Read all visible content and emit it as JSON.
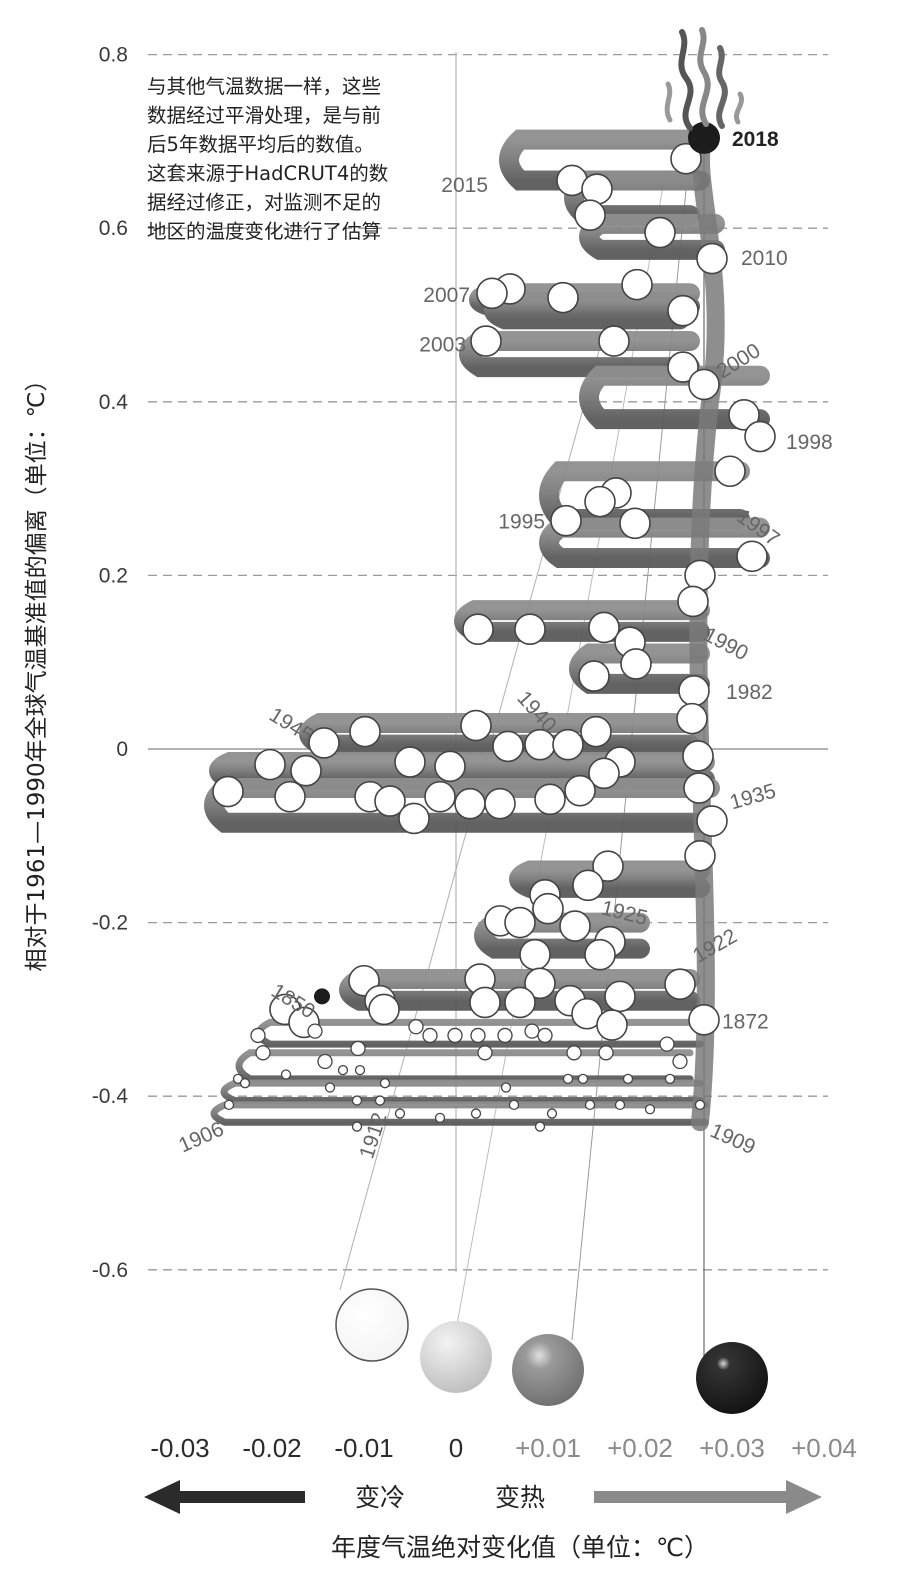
{
  "chart_data": {
    "type": "line",
    "subtype": "spiral-ribbon",
    "title": "",
    "ylabel": "相对于1961—1990年全球气温基准值的偏离（单位：℃）",
    "xlabel": "年度气温绝对变化值（单位：℃）",
    "ylim": [
      -0.6,
      0.8
    ],
    "y_ticks": [
      "0.8",
      "0.6",
      "0.4",
      "0.2",
      "0",
      "-0.2",
      "-0.4",
      "-0.6"
    ],
    "x_ticks": [
      {
        "label": "-0.03",
        "value": -0.03,
        "color": "#2b2b2b"
      },
      {
        "label": "-0.02",
        "value": -0.02,
        "color": "#2b2b2b"
      },
      {
        "label": "-0.01",
        "value": -0.01,
        "color": "#2b2b2b"
      },
      {
        "label": "0",
        "value": 0,
        "color": "#2b2b2b"
      },
      {
        "label": "+0.01",
        "value": 0.01,
        "color": "#8a8a8a"
      },
      {
        "label": "+0.02",
        "value": 0.02,
        "color": "#8a8a8a"
      },
      {
        "label": "+0.03",
        "value": 0.03,
        "color": "#8a8a8a"
      },
      {
        "label": "+0.04",
        "value": 0.04,
        "color": "#8a8a8a"
      }
    ],
    "legend_balls": [
      {
        "value": -0.01,
        "fill": "#ffffff"
      },
      {
        "value": 0,
        "fill": "#cfcfcf"
      },
      {
        "value": 0.01,
        "fill": "#888888"
      },
      {
        "value": 0.03,
        "fill": "#1c1c1c"
      }
    ],
    "direction_labels": {
      "cool": "变冷",
      "warm": "变热"
    },
    "annotation": "与其他气温数据一样，这些数据经过平滑处理，是与前后5年数据平均后的数值。这套来源于HadCRUT4的数据经过修正，对监测不足的地区的温度变化进行了估算",
    "year_labels": [
      {
        "year": "2018",
        "y": 0.704
      },
      {
        "year": "2015",
        "y": 0.651
      },
      {
        "year": "2010",
        "y": 0.567
      },
      {
        "year": "2007",
        "y": 0.524
      },
      {
        "year": "2003",
        "y": 0.467
      },
      {
        "year": "2000",
        "y": 0.434
      },
      {
        "year": "1998",
        "y": 0.355
      },
      {
        "year": "1997",
        "y": 0.272
      },
      {
        "year": "1995",
        "y": 0.263
      },
      {
        "year": "1990",
        "y": 0.135
      },
      {
        "year": "1982",
        "y": 0.067
      },
      {
        "year": "1945",
        "y": 0.043
      },
      {
        "year": "1940",
        "y": 0.064
      },
      {
        "year": "1935",
        "y": -0.061
      },
      {
        "year": "1925",
        "y": -0.181
      },
      {
        "year": "1922",
        "y": -0.239
      },
      {
        "year": "1872",
        "y": -0.313
      },
      {
        "year": "1850",
        "y": -0.275
      },
      {
        "year": "1906",
        "y": -0.435
      },
      {
        "year": "1912",
        "y": -0.445
      },
      {
        "year": "1909",
        "y": -0.437
      }
    ]
  }
}
